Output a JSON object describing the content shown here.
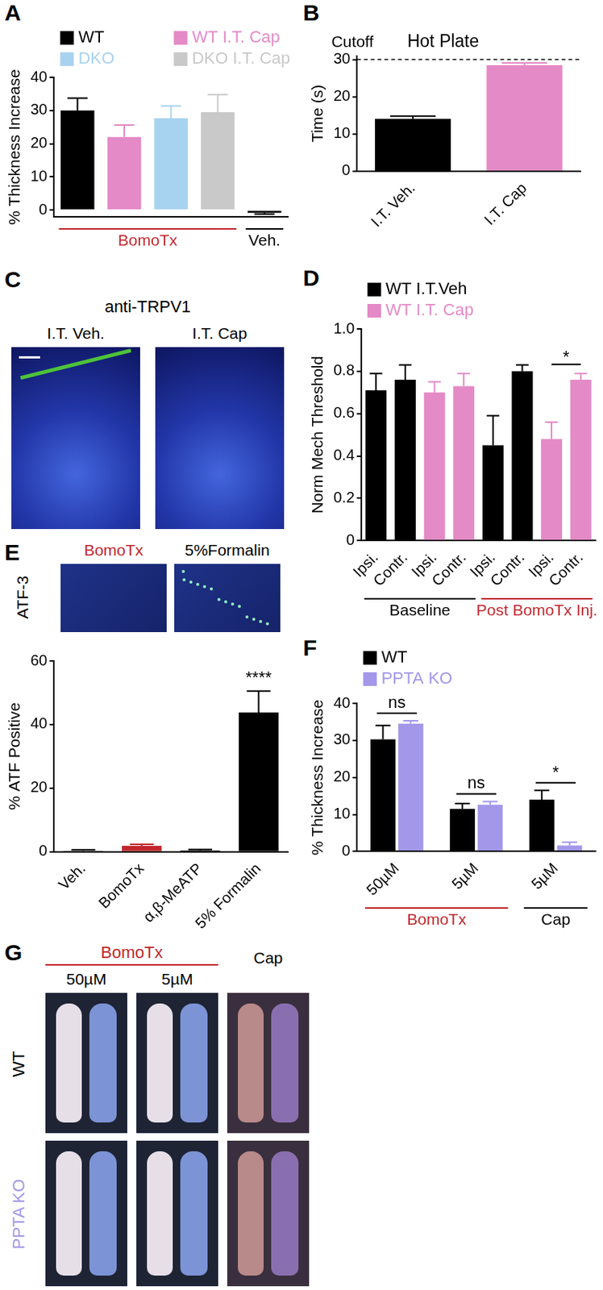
{
  "chart_data": [
    {
      "panel": "A",
      "type": "bar",
      "y_label": "% Thickness Increase",
      "categories": [
        null,
        null,
        null,
        null,
        null
      ],
      "series": [
        {
          "name": "WT",
          "color": "#000000",
          "values": [
            30,
            null,
            null,
            null,
            -0.8
          ],
          "error": [
            3.7,
            null,
            null,
            null,
            0.4
          ]
        },
        {
          "name": "WT I.T. Cap",
          "color": "#e48ac6",
          "values": [
            null,
            22,
            null,
            null,
            null
          ],
          "error": [
            null,
            3.6,
            null,
            null,
            null
          ]
        },
        {
          "name": "DKO",
          "color": "#a8d3f0",
          "values": [
            null,
            null,
            27.7,
            null,
            null
          ],
          "error": [
            null,
            null,
            3.7,
            null,
            null
          ]
        },
        {
          "name": "DKO I.T. Cap",
          "color": "#c9c9c9",
          "values": [
            null,
            null,
            null,
            29.5,
            null
          ],
          "error": [
            null,
            null,
            null,
            5.3,
            null
          ]
        }
      ],
      "ylim": [
        -2,
        40
      ],
      "yticks": [
        0,
        10,
        20,
        30,
        40
      ],
      "tick_labels": "y",
      "legend": "top",
      "groups": [
        {
          "text": "BomoTx",
          "color": "#c1272d",
          "from": 0,
          "to": 3
        },
        {
          "text": "Veh.",
          "color": "#000000",
          "from": 4,
          "to": 4
        }
      ]
    },
    {
      "panel": "B",
      "type": "bar",
      "title": "Hot Plate",
      "y_label": "Time (s)",
      "categories": [
        "I.T. Veh.",
        "I.T. Cap"
      ],
      "values": [
        14.1,
        28.5
      ],
      "error": [
        0.7,
        0.6
      ],
      "colors": [
        "#000000",
        "#e48ac6"
      ],
      "ylim": [
        0,
        31
      ],
      "yticks": [
        0,
        10,
        20,
        30
      ],
      "reference_lines": [
        {
          "value": 30,
          "text": "Cutoff",
          "line_style": "dashed"
        }
      ]
    },
    {
      "panel": "D",
      "type": "bar",
      "y_label": "Norm Mech Threshold",
      "categories": [
        "Ipsi.",
        "Contr.",
        "Ipsi.",
        "Contr.",
        "Ipsi.",
        "Contr.",
        "Ipsi.",
        "Contr."
      ],
      "series": [
        {
          "name": "WT I.T.Veh",
          "color": "#000000",
          "values": [
            0.71,
            0.76,
            null,
            null,
            0.45,
            0.8,
            null,
            null
          ],
          "error": [
            0.08,
            0.07,
            null,
            null,
            0.14,
            0.03,
            null,
            null
          ]
        },
        {
          "name": "WT I.T. Cap",
          "color": "#e48ac6",
          "values": [
            null,
            null,
            0.7,
            0.73,
            null,
            null,
            0.48,
            0.76
          ],
          "error": [
            null,
            null,
            0.05,
            0.06,
            null,
            null,
            0.08,
            0.03
          ]
        }
      ],
      "ylim": [
        0,
        1
      ],
      "yticks": [
        0,
        0.2,
        0.4,
        0.6,
        0.8,
        {
          "value": 1,
          "label": "1.0"
        }
      ],
      "legend": "top",
      "groups": [
        {
          "text": "Baseline",
          "color": "#000000",
          "from": 0,
          "to": 3
        },
        {
          "text": "Post BomoTx Inj.",
          "color": "#c1272d",
          "from": 4,
          "to": 7
        }
      ],
      "annotations": [
        {
          "text": "*",
          "from": 6,
          "to": 7
        }
      ]
    },
    {
      "type": "bar",
      "y_label": "% ATF Positive",
      "categories": [
        "Veh.",
        "BomoTx",
        "α,β-MeATP",
        "5% Formalin"
      ],
      "values": [
        0.3,
        1.8,
        0.4,
        43.8
      ],
      "error": [
        0.3,
        0.5,
        0.3,
        6.7
      ],
      "colors": [
        "#000000",
        "#c1272d",
        "#000000",
        "#000000"
      ],
      "ylim": [
        0,
        60
      ],
      "yticks": [
        0,
        20,
        40,
        60
      ],
      "annotations": [
        {
          "text": "****",
          "category": 3
        }
      ]
    },
    {
      "panel": "F",
      "type": "bar",
      "y_label": "% Thickness Increase",
      "categories": [
        "50µM",
        "5µM",
        "5µM"
      ],
      "series": [
        {
          "name": "WT",
          "color": "#000000",
          "values": [
            30.3,
            11.5,
            14
          ],
          "error": [
            3.7,
            1.4,
            2.5
          ]
        },
        {
          "name": "PPTA KO",
          "color": "#a397ea",
          "values": [
            34.5,
            12.6,
            1.6
          ],
          "error": [
            0.8,
            0.9,
            0.9
          ]
        }
      ],
      "ylim": [
        0,
        40
      ],
      "yticks": [
        0,
        10,
        20,
        30,
        40
      ],
      "legend": "top",
      "groups": [
        {
          "text": "BomoTx",
          "color": "#c1272d",
          "from": 0,
          "to": 1
        },
        {
          "text": "Cap",
          "color": "#000000",
          "from": 2,
          "to": 2
        }
      ],
      "annotations": [
        {
          "text": "ns",
          "category": 0
        },
        {
          "text": "ns",
          "category": 1
        },
        {
          "text": "*",
          "category": 2
        }
      ]
    }
  ],
  "images": [
    {
      "panel": "C",
      "title": "anti-TRPV1",
      "labels": [
        {
          "text": "I.T. Veh.",
          "color": "#000000"
        },
        {
          "text": "I.T. Cap",
          "color": "#000000"
        }
      ]
    },
    {
      "panel": "E",
      "row_label": "ATF-3",
      "labels": [
        {
          "text": "BomoTx",
          "color": "#c1272d"
        },
        {
          "text": "5%Formalin",
          "color": "#000000"
        }
      ]
    },
    {
      "panel": "G",
      "group": {
        "text": "BomoTx",
        "color": "#c1272d",
        "from": 0,
        "to": 1
      },
      "columns": [
        "50µM",
        "5µM",
        "Cap"
      ],
      "rows": [
        {
          "text": "WT",
          "color": "#000000"
        },
        {
          "text": "PPTA KO",
          "color": "#a397ea"
        }
      ]
    }
  ]
}
